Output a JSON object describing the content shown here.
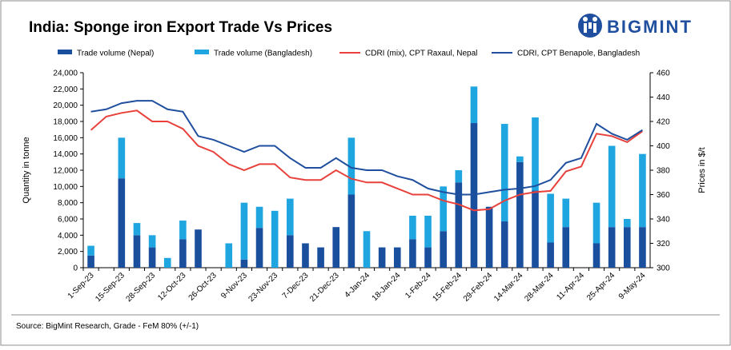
{
  "chart_data": {
    "type": "bar-line",
    "title": "India: Sponge iron Export Trade Vs Prices",
    "logo": "BIGMINT",
    "source": "Source: BigMint Research, Grade - FeM 80% (+/-1)",
    "y_label": "Quantity in tonne",
    "y2_label": "Prices in $/t",
    "categories": [
      "1-Sep-23",
      null,
      "15-Sep-23",
      null,
      "28-Sep-23",
      null,
      "12-Oct-23",
      null,
      "26-Oct-23",
      null,
      "9-Nov-23",
      null,
      "23-Nov-23",
      null,
      "7-Dec-23",
      null,
      "21-Dec-23",
      null,
      "4-Jan-24",
      null,
      "18-Jan-24",
      null,
      "1-Feb-24",
      null,
      "15-Feb-24",
      null,
      "29-Feb-24",
      null,
      "14-Mar-24",
      null,
      "28-Mar-24",
      null,
      "11-Apr-24",
      null,
      "25-Apr-24",
      null,
      "9-May-24"
    ],
    "series": [
      {
        "name": "Trade volume (Nepal)",
        "kind": "bar",
        "color": "#1a4f9e",
        "values": [
          1500,
          0,
          11000,
          4000,
          2500,
          0,
          3500,
          4700,
          0,
          0,
          1000,
          4900,
          0,
          4000,
          3000,
          2500,
          5000,
          9000,
          0,
          2500,
          2500,
          3500,
          2500,
          4500,
          10500,
          17800,
          7500,
          5700,
          13000,
          9500,
          3100,
          5000,
          0,
          3000,
          5000,
          5000,
          5000
        ]
      },
      {
        "name": "Trade volume (Bangladesh)",
        "kind": "bar",
        "color": "#1fa6e0",
        "values": [
          1200,
          0,
          5000,
          1500,
          1500,
          1200,
          2300,
          0,
          0,
          3000,
          7000,
          2600,
          7000,
          4500,
          0,
          0,
          0,
          7000,
          4500,
          0,
          0,
          2900,
          3900,
          5500,
          1500,
          4500,
          0,
          12000,
          700,
          9000,
          6000,
          3500,
          0,
          5000,
          10000,
          1000,
          9000
        ]
      },
      {
        "name": "CDRI (mix), CPT Raxaul, Nepal",
        "kind": "line",
        "axis": "y2",
        "color": "#e8413c",
        "values": [
          413,
          424,
          427,
          429,
          420,
          420,
          414,
          400,
          395,
          385,
          380,
          385,
          385,
          374,
          372,
          372,
          380,
          373,
          370,
          370,
          365,
          360,
          360,
          355,
          352,
          347,
          348,
          355,
          360,
          362,
          363,
          379,
          383,
          410,
          408,
          403,
          412
        ]
      },
      {
        "name": "CDRI, CPT Benapole, Bangladesh",
        "kind": "line",
        "axis": "y2",
        "color": "#1f4f9e",
        "values": [
          428,
          430,
          435,
          437,
          437,
          430,
          428,
          408,
          405,
          400,
          395,
          400,
          400,
          390,
          382,
          382,
          390,
          382,
          380,
          380,
          375,
          372,
          365,
          362,
          360,
          360,
          362,
          364,
          365,
          367,
          372,
          386,
          390,
          418,
          410,
          405,
          413
        ]
      }
    ],
    "ylim": [
      0,
      24000
    ],
    "yticks": [
      0,
      {
        "value": 2000,
        "label": "2,000"
      },
      {
        "value": 4000,
        "label": "4,000"
      },
      {
        "value": 6000,
        "label": "6,000"
      },
      {
        "value": 8000,
        "label": "8,000"
      },
      {
        "value": 10000,
        "label": "10,000"
      },
      {
        "value": 12000,
        "label": "12,000"
      },
      {
        "value": 14000,
        "label": "14,000"
      },
      {
        "value": 16000,
        "label": "16,000"
      },
      {
        "value": 18000,
        "label": "18,000"
      },
      {
        "value": 20000,
        "label": "20,000"
      },
      {
        "value": 22000,
        "label": "22,000"
      },
      {
        "value": 24000,
        "label": "24,000"
      }
    ],
    "y2lim": [
      300,
      460
    ],
    "y2ticks": [
      300,
      320,
      340,
      360,
      380,
      400,
      420,
      440,
      460
    ]
  }
}
